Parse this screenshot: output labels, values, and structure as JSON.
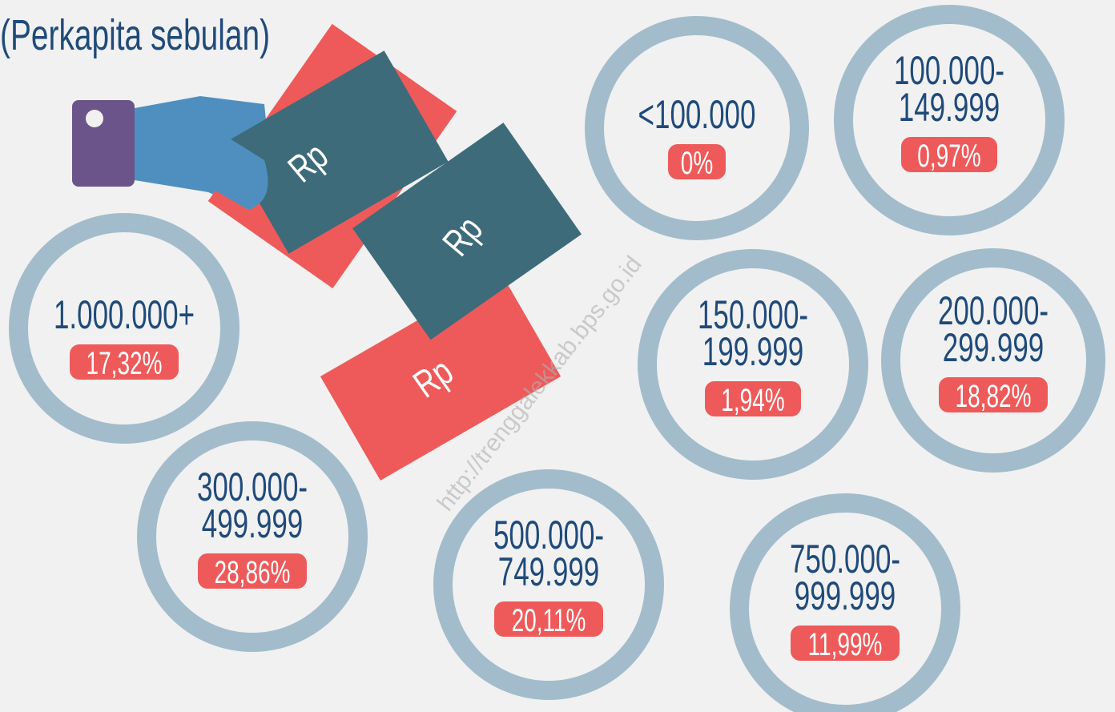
{
  "subtitle": "(Perkapita sebulan)",
  "watermark": "http://trenggalekkab.bps.go.id",
  "items": [
    {
      "range": [
        "<100.000"
      ],
      "percent": "0%"
    },
    {
      "range": [
        "100.000-",
        "149.999"
      ],
      "percent": "0,97%"
    },
    {
      "range": [
        "1.000.000+"
      ],
      "percent": "17,32%"
    },
    {
      "range": [
        "150.000-",
        "199.999"
      ],
      "percent": "1,94%"
    },
    {
      "range": [
        "200.000-",
        "299.999"
      ],
      "percent": "18,82%"
    },
    {
      "range": [
        "300.000-",
        "499.999"
      ],
      "percent": "28,86%"
    },
    {
      "range": [
        "500.000-",
        "749.999"
      ],
      "percent": "20,11%"
    },
    {
      "range": [
        "750.000-",
        "999.999"
      ],
      "percent": "11,99%"
    }
  ]
}
